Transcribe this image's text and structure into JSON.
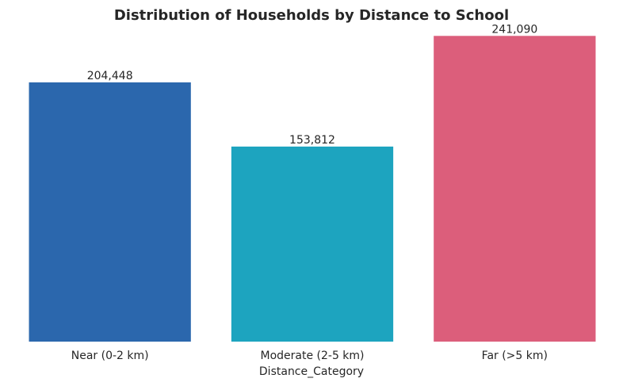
{
  "chart_data": {
    "type": "bar",
    "title": "Distribution of Households by Distance to School",
    "xlabel": "Distance_Category",
    "ylabel": "",
    "categories": [
      "Near (0-2 km)",
      "Moderate (2-5 km)",
      "Far (>5 km)"
    ],
    "values": [
      204448,
      153812,
      241090
    ],
    "value_labels": [
      "204,448",
      "153,812",
      "241,090"
    ],
    "colors": [
      "#2b67ad",
      "#1da4bf",
      "#dc5e7b"
    ],
    "ylim": [
      0,
      253145
    ],
    "grid": false,
    "legend": "none"
  }
}
